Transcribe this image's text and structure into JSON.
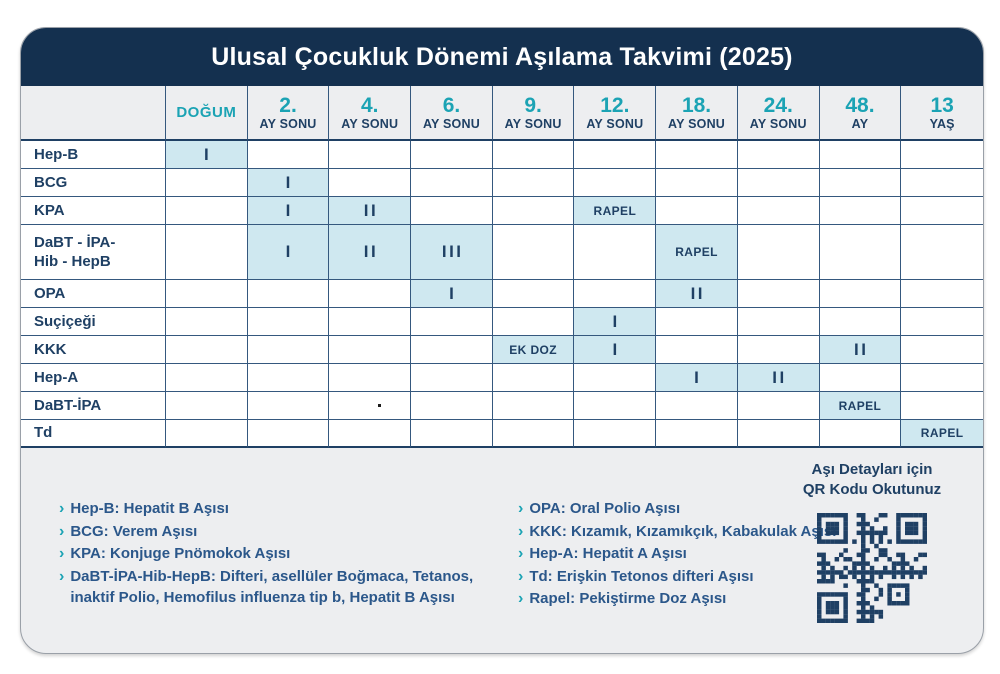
{
  "title": "Ulusal Çocukluk Dönemi Aşılama Takvimi (2025)",
  "header": {
    "age_columns": [
      {
        "num": "DOĞUM",
        "unit": ""
      },
      {
        "num": "2.",
        "unit": "AY SONU"
      },
      {
        "num": "4.",
        "unit": "AY SONU"
      },
      {
        "num": "6.",
        "unit": "AY SONU"
      },
      {
        "num": "9.",
        "unit": "AY SONU"
      },
      {
        "num": "12.",
        "unit": "AY SONU"
      },
      {
        "num": "18.",
        "unit": "AY SONU"
      },
      {
        "num": "24.",
        "unit": "AY SONU"
      },
      {
        "num": "48.",
        "unit": "AY"
      },
      {
        "num": "13",
        "unit": "YAŞ"
      }
    ]
  },
  "rows": [
    {
      "label": "Hep-B",
      "marks": [
        {
          "col": 0,
          "text": "I"
        }
      ]
    },
    {
      "label": "BCG",
      "marks": [
        {
          "col": 1,
          "text": "I"
        }
      ]
    },
    {
      "label": "KPA",
      "marks": [
        {
          "col": 1,
          "text": "I"
        },
        {
          "col": 2,
          "text": "II"
        },
        {
          "col": 5,
          "text": "RAPEL"
        }
      ]
    },
    {
      "label": "DaBT - İPA-\nHib - HepB",
      "marks": [
        {
          "col": 1,
          "text": "I"
        },
        {
          "col": 2,
          "text": "II"
        },
        {
          "col": 3,
          "text": "III"
        },
        {
          "col": 6,
          "text": "RAPEL"
        }
      ]
    },
    {
      "label": "OPA",
      "marks": [
        {
          "col": 3,
          "text": "I"
        },
        {
          "col": 6,
          "text": "II"
        }
      ]
    },
    {
      "label": "Suçiçeği",
      "marks": [
        {
          "col": 5,
          "text": "I"
        }
      ]
    },
    {
      "label": "KKK",
      "marks": [
        {
          "col": 4,
          "text": "EK DOZ"
        },
        {
          "col": 5,
          "text": "I"
        },
        {
          "col": 8,
          "text": "II"
        }
      ]
    },
    {
      "label": "Hep-A",
      "marks": [
        {
          "col": 6,
          "text": "I"
        },
        {
          "col": 7,
          "text": "II"
        }
      ]
    },
    {
      "label": "DaBT-İPA",
      "marks": [
        {
          "col": 2,
          "text": "."
        },
        {
          "col": 8,
          "text": "RAPEL"
        }
      ]
    },
    {
      "label": "Td",
      "marks": [
        {
          "col": 9,
          "text": "RAPEL"
        }
      ]
    }
  ],
  "legend": {
    "left": [
      "Hep-B: Hepatit B Aşısı",
      "BCG: Verem Aşısı",
      "KPA: Konjuge Pnömokok Aşısı",
      "DaBT-İPA-Hib-HepB: Difteri, asellüler Boğmaca, Tetanos, inaktif Polio, Hemofilus influenza tip b, Hepatit B Aşısı"
    ],
    "right": [
      "OPA: Oral Polio Aşısı",
      "KKK: Kızamık, Kızamıkçık, Kabakulak Aşısı",
      "Hep-A: Hepatit A Aşısı",
      "Td: Erişkin Tetonos difteri Aşısı",
      "Rapel: Pekiştirme Doz Aşısı"
    ],
    "chevron": "›"
  },
  "qr": {
    "caption_line1": "Aşı Detayları için",
    "caption_line2": "QR Kodu Okutunuz"
  },
  "colors": {
    "navy_band": "#14304f",
    "table_ink": "#1f4064",
    "teal_accent": "#1ba3b4",
    "cell_highlight": "#cfe8f0",
    "card_background": "#edeef0",
    "legend_text": "#2b578a"
  }
}
